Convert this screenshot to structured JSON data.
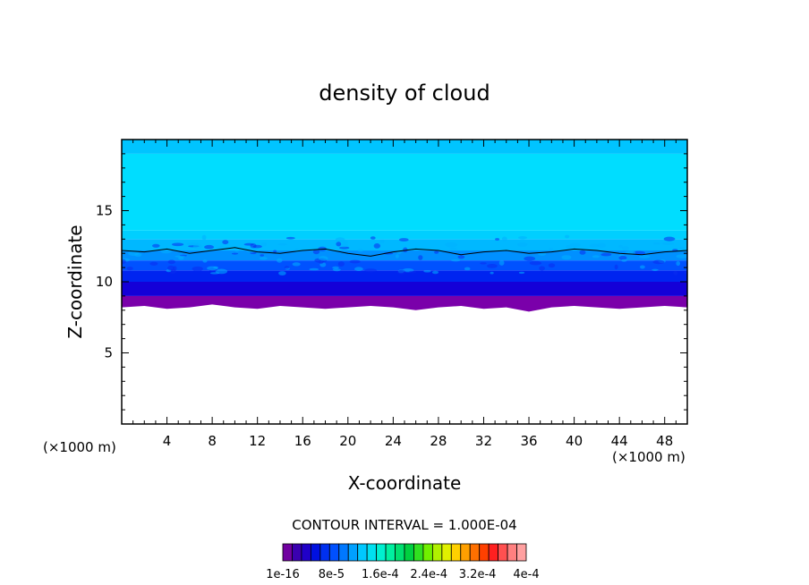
{
  "chart_data": {
    "type": "heatmap",
    "title": "density of cloud",
    "xlabel": "X-coordinate",
    "ylabel": "Z-coordinate",
    "x_unit_left": "(×1000 m)",
    "x_unit_right": "(×1000 m)",
    "xlim": [
      0,
      50
    ],
    "ylim": [
      0,
      20
    ],
    "x_ticks": [
      4,
      8,
      12,
      16,
      20,
      24,
      28,
      32,
      36,
      40,
      44,
      48
    ],
    "y_ticks": [
      5,
      10,
      15
    ],
    "contour_line_z": [
      12.2,
      12.1,
      12.3,
      12.0,
      12.2,
      12.4,
      12.1,
      12.0,
      12.2,
      12.3,
      12.0,
      11.8,
      12.1,
      12.3,
      12.2,
      11.9,
      12.1,
      12.2,
      12.0,
      12.1,
      12.3,
      12.2,
      12.0,
      11.9,
      12.1,
      12.2
    ],
    "cloud_base_z": [
      8.2,
      8.3,
      8.1,
      8.2,
      8.4,
      8.2,
      8.1,
      8.3,
      8.2,
      8.1,
      8.2,
      8.3,
      8.2,
      8.0,
      8.2,
      8.3,
      8.1,
      8.2,
      7.9,
      8.2,
      8.3,
      8.2,
      8.1,
      8.2,
      8.3,
      8.2
    ],
    "layers": [
      {
        "z_bottom": 8.2,
        "z_top": 9.0,
        "color": "#7a00aa"
      },
      {
        "z_bottom": 9.0,
        "z_top": 10.0,
        "color": "#1400d8"
      },
      {
        "z_bottom": 10.0,
        "z_top": 10.8,
        "color": "#0024f0"
      },
      {
        "z_bottom": 10.8,
        "z_top": 11.5,
        "color": "#0052ff"
      },
      {
        "z_bottom": 11.5,
        "z_top": 12.2,
        "color": "#0090ff"
      },
      {
        "z_bottom": 12.2,
        "z_top": 13.0,
        "color": "#00b8ff"
      },
      {
        "z_bottom": 13.0,
        "z_top": 13.6,
        "color": "#00cfff"
      },
      {
        "z_bottom": 13.6,
        "z_top": 19.0,
        "color": "#00ddff"
      },
      {
        "z_bottom": 19.0,
        "z_top": 20.0,
        "color": "#00c4ff"
      }
    ],
    "contour_interval_text": "CONTOUR INTERVAL = 1.000E-04",
    "colorbar": {
      "colors": [
        "#7000a0",
        "#3a00b0",
        "#2000c8",
        "#0010e0",
        "#0030f0",
        "#0050ff",
        "#0078ff",
        "#00a0ff",
        "#00c8ff",
        "#00e0f0",
        "#00f0d0",
        "#00f0a0",
        "#00e070",
        "#00d040",
        "#30e020",
        "#70f000",
        "#b0f000",
        "#e0f000",
        "#ffd000",
        "#ffa000",
        "#ff7000",
        "#ff4000",
        "#ff2020",
        "#ff5050",
        "#ff8080",
        "#ffa0a0"
      ],
      "labels": [
        "1e-16",
        "8e-5",
        "1.6e-4",
        "2.4e-4",
        "3.2e-4",
        "4e-4"
      ]
    }
  }
}
